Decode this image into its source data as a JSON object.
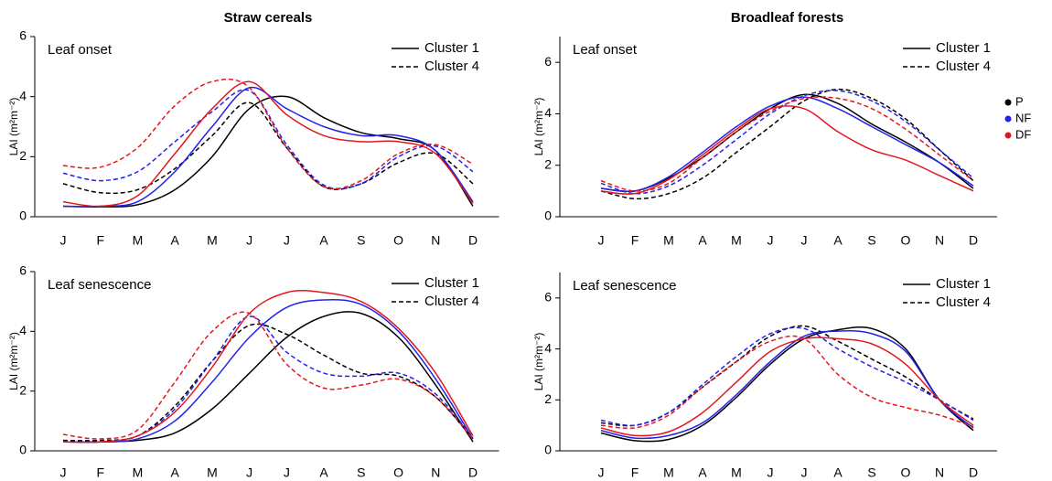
{
  "chart_data": [
    {
      "type": "line",
      "title": "Straw cereals",
      "annotation": "Leaf onset",
      "y_label": "LAI (m²m⁻²)",
      "categories": [
        "J",
        "F",
        "M",
        "A",
        "M",
        "J",
        "J",
        "A",
        "S",
        "O",
        "N",
        "D"
      ],
      "ylim": [
        0,
        6
      ],
      "yticks": [
        0,
        2,
        4,
        6
      ],
      "series": [
        {
          "name": "P",
          "cluster": "Cluster 1",
          "color": "#000000",
          "dashed": false,
          "values": [
            0.35,
            0.33,
            0.4,
            0.9,
            2.0,
            3.6,
            4.0,
            3.3,
            2.8,
            2.6,
            2.2,
            0.35
          ]
        },
        {
          "name": "P",
          "cluster": "Cluster 4",
          "color": "#000000",
          "dashed": true,
          "values": [
            1.1,
            0.8,
            0.9,
            1.6,
            2.7,
            3.8,
            2.3,
            1.0,
            1.1,
            1.8,
            2.1,
            1.1
          ]
        },
        {
          "name": "NF",
          "cluster": "Cluster 1",
          "color": "#2222ee",
          "dashed": false,
          "values": [
            0.35,
            0.35,
            0.5,
            1.5,
            3.0,
            4.3,
            3.6,
            3.0,
            2.7,
            2.7,
            2.2,
            0.5
          ]
        },
        {
          "name": "NF",
          "cluster": "Cluster 4",
          "color": "#2222ee",
          "dashed": true,
          "values": [
            1.45,
            1.2,
            1.5,
            2.5,
            3.5,
            4.2,
            2.4,
            1.05,
            1.1,
            2.0,
            2.35,
            1.5
          ]
        },
        {
          "name": "DF",
          "cluster": "Cluster 1",
          "color": "#e3171e",
          "dashed": false,
          "values": [
            0.5,
            0.35,
            0.7,
            2.1,
            3.6,
            4.5,
            3.4,
            2.7,
            2.5,
            2.5,
            2.1,
            0.45
          ]
        },
        {
          "name": "DF",
          "cluster": "Cluster 4",
          "color": "#e3171e",
          "dashed": true,
          "values": [
            1.7,
            1.65,
            2.3,
            3.7,
            4.5,
            4.3,
            2.3,
            1.0,
            1.2,
            2.1,
            2.4,
            1.75
          ]
        }
      ]
    },
    {
      "type": "line",
      "title": "Broadleaf forests",
      "annotation": "Leaf onset",
      "y_label": "LAI (m²m⁻²)",
      "categories": [
        "J",
        "F",
        "M",
        "A",
        "M",
        "J",
        "J",
        "A",
        "S",
        "O",
        "N",
        "D"
      ],
      "ylim": [
        0,
        7
      ],
      "yticks": [
        0,
        2,
        4,
        6
      ],
      "series": [
        {
          "name": "P",
          "cluster": "Cluster 1",
          "color": "#000000",
          "dashed": false,
          "values": [
            1.1,
            1.0,
            1.5,
            2.3,
            3.3,
            4.2,
            4.75,
            4.4,
            3.6,
            2.9,
            2.1,
            1.1
          ]
        },
        {
          "name": "P",
          "cluster": "Cluster 4",
          "color": "#000000",
          "dashed": true,
          "values": [
            1.0,
            0.7,
            0.9,
            1.5,
            2.5,
            3.5,
            4.5,
            4.95,
            4.6,
            3.8,
            2.6,
            1.4
          ]
        },
        {
          "name": "NF",
          "cluster": "Cluster 1",
          "color": "#2222ee",
          "dashed": false,
          "values": [
            1.1,
            1.0,
            1.55,
            2.5,
            3.5,
            4.3,
            4.65,
            4.2,
            3.5,
            2.8,
            2.1,
            1.2
          ]
        },
        {
          "name": "NF",
          "cluster": "Cluster 4",
          "color": "#2222ee",
          "dashed": true,
          "values": [
            1.3,
            0.9,
            1.2,
            2.0,
            3.0,
            4.0,
            4.7,
            4.9,
            4.5,
            3.7,
            2.6,
            1.5
          ]
        },
        {
          "name": "DF",
          "cluster": "Cluster 1",
          "color": "#e3171e",
          "dashed": false,
          "values": [
            1.0,
            0.9,
            1.45,
            2.4,
            3.4,
            4.2,
            4.2,
            3.3,
            2.6,
            2.2,
            1.6,
            1.0
          ]
        },
        {
          "name": "DF",
          "cluster": "Cluster 4",
          "color": "#e3171e",
          "dashed": true,
          "values": [
            1.4,
            1.0,
            1.3,
            2.3,
            3.3,
            4.1,
            4.6,
            4.6,
            4.2,
            3.4,
            2.4,
            1.4
          ]
        }
      ]
    },
    {
      "type": "line",
      "annotation": "Leaf senescence",
      "y_label": "LAI (m²m⁻²)",
      "categories": [
        "J",
        "F",
        "M",
        "A",
        "M",
        "J",
        "J",
        "A",
        "S",
        "O",
        "N",
        "D"
      ],
      "ylim": [
        0,
        6
      ],
      "yticks": [
        0,
        2,
        4,
        6
      ],
      "series": [
        {
          "name": "P",
          "cluster": "Cluster 1",
          "color": "#000000",
          "dashed": false,
          "values": [
            0.3,
            0.3,
            0.35,
            0.6,
            1.4,
            2.6,
            3.8,
            4.5,
            4.6,
            3.8,
            2.2,
            0.3
          ]
        },
        {
          "name": "P",
          "cluster": "Cluster 4",
          "color": "#000000",
          "dashed": true,
          "values": [
            0.35,
            0.35,
            0.5,
            1.5,
            3.0,
            4.2,
            3.9,
            3.2,
            2.6,
            2.5,
            1.8,
            0.4
          ]
        },
        {
          "name": "NF",
          "cluster": "Cluster 1",
          "color": "#2222ee",
          "dashed": false,
          "values": [
            0.3,
            0.3,
            0.4,
            1.0,
            2.3,
            3.8,
            4.8,
            5.05,
            4.9,
            4.0,
            2.4,
            0.4
          ]
        },
        {
          "name": "NF",
          "cluster": "Cluster 4",
          "color": "#2222ee",
          "dashed": true,
          "values": [
            0.3,
            0.3,
            0.5,
            1.4,
            3.0,
            4.5,
            3.3,
            2.6,
            2.5,
            2.6,
            1.9,
            0.45
          ]
        },
        {
          "name": "DF",
          "cluster": "Cluster 1",
          "color": "#e3171e",
          "dashed": false,
          "values": [
            0.3,
            0.3,
            0.5,
            1.3,
            2.8,
            4.6,
            5.3,
            5.3,
            5.0,
            4.1,
            2.6,
            0.5
          ]
        },
        {
          "name": "DF",
          "cluster": "Cluster 4",
          "color": "#e3171e",
          "dashed": true,
          "values": [
            0.55,
            0.4,
            0.7,
            2.3,
            4.0,
            4.6,
            2.9,
            2.1,
            2.2,
            2.4,
            1.8,
            0.4
          ]
        }
      ]
    },
    {
      "type": "line",
      "annotation": "Leaf senescence",
      "y_label": "LAI (m²m⁻²)",
      "categories": [
        "J",
        "F",
        "M",
        "A",
        "M",
        "J",
        "J",
        "A",
        "S",
        "O",
        "N",
        "D"
      ],
      "ylim": [
        0,
        7
      ],
      "yticks": [
        0,
        2,
        4,
        6
      ],
      "series": [
        {
          "name": "P",
          "cluster": "Cluster 1",
          "color": "#000000",
          "dashed": false,
          "values": [
            0.7,
            0.4,
            0.45,
            1.0,
            2.1,
            3.4,
            4.4,
            4.75,
            4.8,
            4.0,
            2.0,
            0.8
          ]
        },
        {
          "name": "P",
          "cluster": "Cluster 4",
          "color": "#000000",
          "dashed": true,
          "values": [
            1.1,
            1.0,
            1.5,
            2.5,
            3.5,
            4.5,
            4.9,
            4.3,
            3.6,
            2.9,
            2.0,
            1.25
          ]
        },
        {
          "name": "NF",
          "cluster": "Cluster 1",
          "color": "#2222ee",
          "dashed": false,
          "values": [
            0.8,
            0.5,
            0.6,
            1.1,
            2.2,
            3.5,
            4.5,
            4.7,
            4.6,
            3.9,
            2.0,
            0.9
          ]
        },
        {
          "name": "NF",
          "cluster": "Cluster 4",
          "color": "#2222ee",
          "dashed": true,
          "values": [
            1.2,
            1.0,
            1.5,
            2.6,
            3.7,
            4.6,
            4.8,
            4.0,
            3.3,
            2.7,
            2.0,
            1.2
          ]
        },
        {
          "name": "DF",
          "cluster": "Cluster 1",
          "color": "#e3171e",
          "dashed": false,
          "values": [
            0.9,
            0.6,
            0.75,
            1.5,
            2.7,
            3.9,
            4.4,
            4.4,
            4.2,
            3.4,
            2.0,
            1.0
          ]
        },
        {
          "name": "DF",
          "cluster": "Cluster 4",
          "color": "#e3171e",
          "dashed": true,
          "values": [
            1.0,
            0.9,
            1.4,
            2.5,
            3.5,
            4.3,
            4.4,
            3.0,
            2.1,
            1.7,
            1.4,
            0.95
          ]
        }
      ]
    }
  ]
}
